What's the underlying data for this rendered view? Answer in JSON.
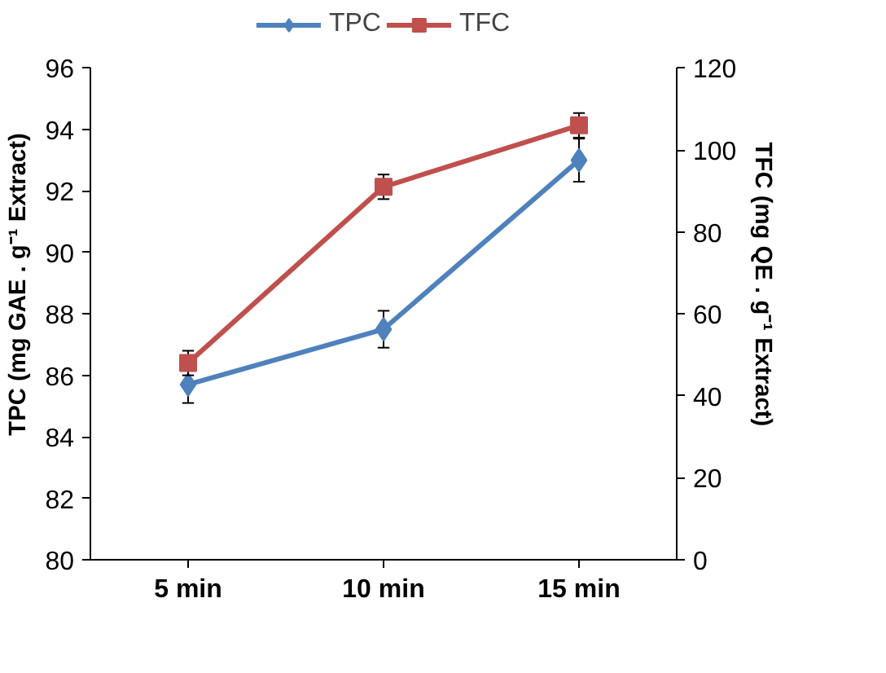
{
  "chart_data": {
    "type": "line",
    "categories": [
      "5 min",
      "10 min",
      "15 min"
    ],
    "ylabel": "TPC (mg GAE . g⁻¹ Extract)",
    "y2label": "TFC (mg QE . g⁻¹ Extract)",
    "ylim": [
      80,
      96
    ],
    "yticks": [
      80,
      82,
      84,
      86,
      88,
      90,
      92,
      94,
      96
    ],
    "y2lim": [
      0,
      120
    ],
    "y2ticks": [
      0,
      20,
      40,
      60,
      80,
      100,
      120
    ],
    "grid": false,
    "legend": "top",
    "series": [
      {
        "name": "TPC",
        "color": "#4f81bd",
        "marker": "diamond",
        "values": [
          85.7,
          87.5,
          93.0
        ],
        "errors": [
          0.6,
          0.6,
          0.7
        ]
      },
      {
        "name": "TFC",
        "color": "#c0504d",
        "marker": "square",
        "axis": "y2",
        "values": [
          48,
          91,
          106
        ],
        "errors": [
          3,
          3,
          3
        ]
      }
    ]
  }
}
